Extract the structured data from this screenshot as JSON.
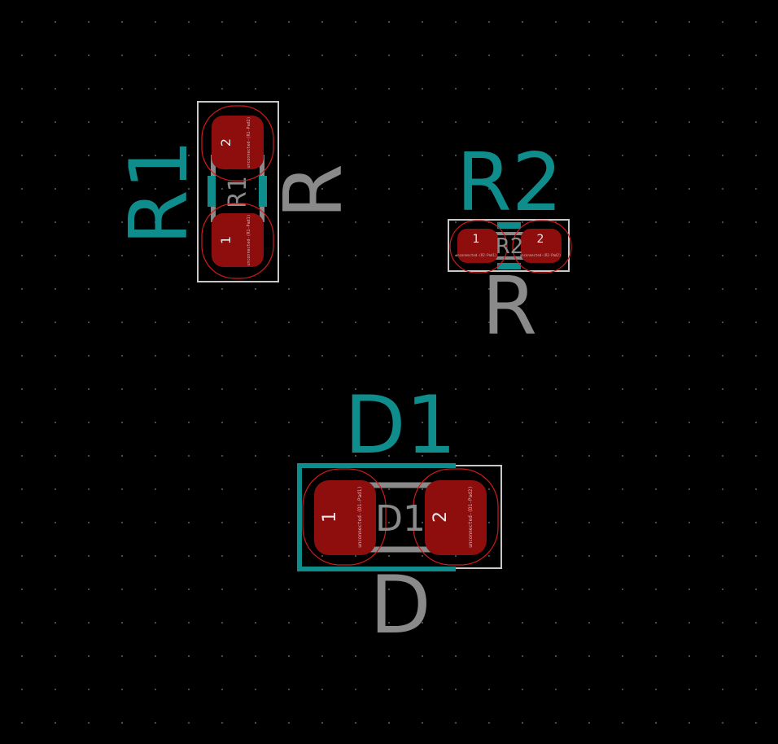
{
  "colors": {
    "background": "#000000",
    "grid_dot": "#4a4a4a",
    "pad": "#8e0e0e",
    "pad_clearance": "#d11a1a",
    "silkscreen": "#0f8c8c",
    "fabrication": "#8a8a8a",
    "courtyard": "#c8c8c8",
    "pad_number": "#e6e6e6"
  },
  "footprints": {
    "r1": {
      "reference": "R1",
      "value": "R",
      "fab_reference": "R1",
      "pads": [
        {
          "number": "2",
          "net": "unconnected-(R1-Pad2)"
        },
        {
          "number": "1",
          "net": "unconnected-(R1-Pad1)"
        }
      ]
    },
    "r2": {
      "reference": "R2",
      "value": "R",
      "fab_reference": "R2",
      "pads": [
        {
          "number": "1",
          "net": "unconnected-(R2-Pad1)"
        },
        {
          "number": "2",
          "net": "unconnected-(R2-Pad2)"
        }
      ]
    },
    "d1": {
      "reference": "D1",
      "value": "D",
      "fab_reference": "D1",
      "pads": [
        {
          "number": "1",
          "net": "unconnected-(D1-Pad1)"
        },
        {
          "number": "2",
          "net": "unconnected-(D1-Pad2)"
        }
      ]
    }
  }
}
